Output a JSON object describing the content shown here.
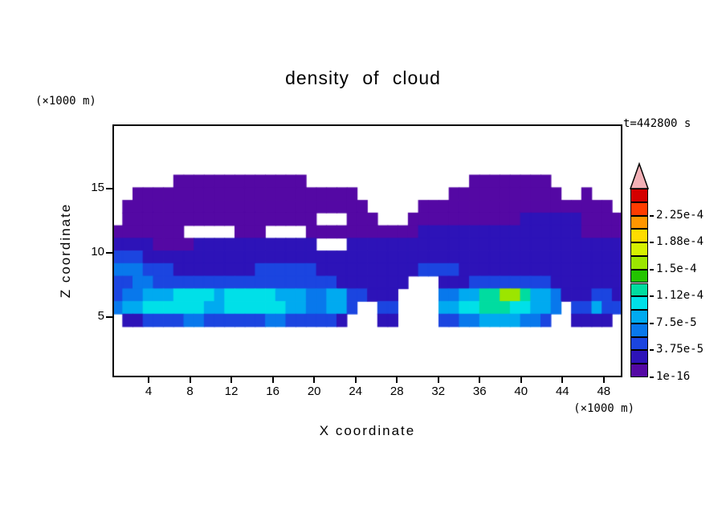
{
  "chart_data": {
    "type": "heatmap",
    "title": "density of cloud",
    "xlabel": "X coordinate",
    "ylabel": "Z coordinate",
    "x_unit_label": "(×1000 m)",
    "y_unit_label": "(×1000 m)",
    "annotation": "t=442800 s",
    "xlim": [
      0.5,
      49.8
    ],
    "ylim": [
      0.3,
      20
    ],
    "xticks": [
      4,
      8,
      12,
      16,
      20,
      24,
      28,
      32,
      36,
      40,
      44,
      48
    ],
    "yticks": [
      5,
      10,
      15
    ],
    "grid_lines": "off",
    "colorbar": {
      "orientation": "vertical-right",
      "labels_bottom_to_top": [
        {
          "text": "1e-16",
          "boundary": 0
        },
        {
          "text": "3.75e-5",
          "boundary": 2
        },
        {
          "text": "7.5e-5",
          "boundary": 4
        },
        {
          "text": "1.12e-4",
          "boundary": 6
        },
        {
          "text": "1.5e-4",
          "boundary": 8
        },
        {
          "text": "1.88e-4",
          "boundary": 10
        },
        {
          "text": "2.25e-4",
          "boundary": 12
        }
      ],
      "segment_colors_bottom_to_top": [
        "#5408a4",
        "#2d13b8",
        "#1b45e0",
        "#0878ec",
        "#00aaf0",
        "#00e0e8",
        "#00dca0",
        "#23c400",
        "#9ce500",
        "#d6f000",
        "#ffdc00",
        "#ff9600",
        "#ff3c00",
        "#d40000"
      ],
      "arrow_color": "#f2b0b6"
    },
    "grid": {
      "cols": 50,
      "rows": 20,
      "encoding_note": "one char per cell, top row = z~20, bottom row = z~0; 0 = clear sky (white), hex 1-E = increasing cloud-density color level",
      "rows_top_to_bottom": [
        "00000000000000000000000000000000000000000000000000",
        "00000000000000000000000000000000000000000000000000",
        "00000000000000000000000000000000000000000000000000",
        "00000000000000000000000000000000000000000000000000",
        "00000011111111111110000000000000000111111110000000",
        "00111111111111111111111100000000011111111111001000",
        "01111111111111111111111110000011111111111111111110",
        "01111111111111111111000111000111111111112222221111",
        "11111110000011100001111111111122222222222222221111",
        "22221111222222222222000222222222222222222222222222",
        "33322222222222222222222222222222222222222222222222",
        "44433322222222333333222222222233332222222222222222",
        "33443333333333333333332222222000222333333332222222",
        "34455566665666665554455332220000445577997554222332",
        "45566666655666666554455300330000556677766554033533",
        "02233334433333344333332000220000334455554430022220",
        "00000000000000000000000000000000000000000000000000",
        "00000000000000000000000000000000000000000000000000",
        "00000000000000000000000000000000000000000000000000",
        "00000000000000000000000000000000000000000000000000"
      ]
    }
  }
}
